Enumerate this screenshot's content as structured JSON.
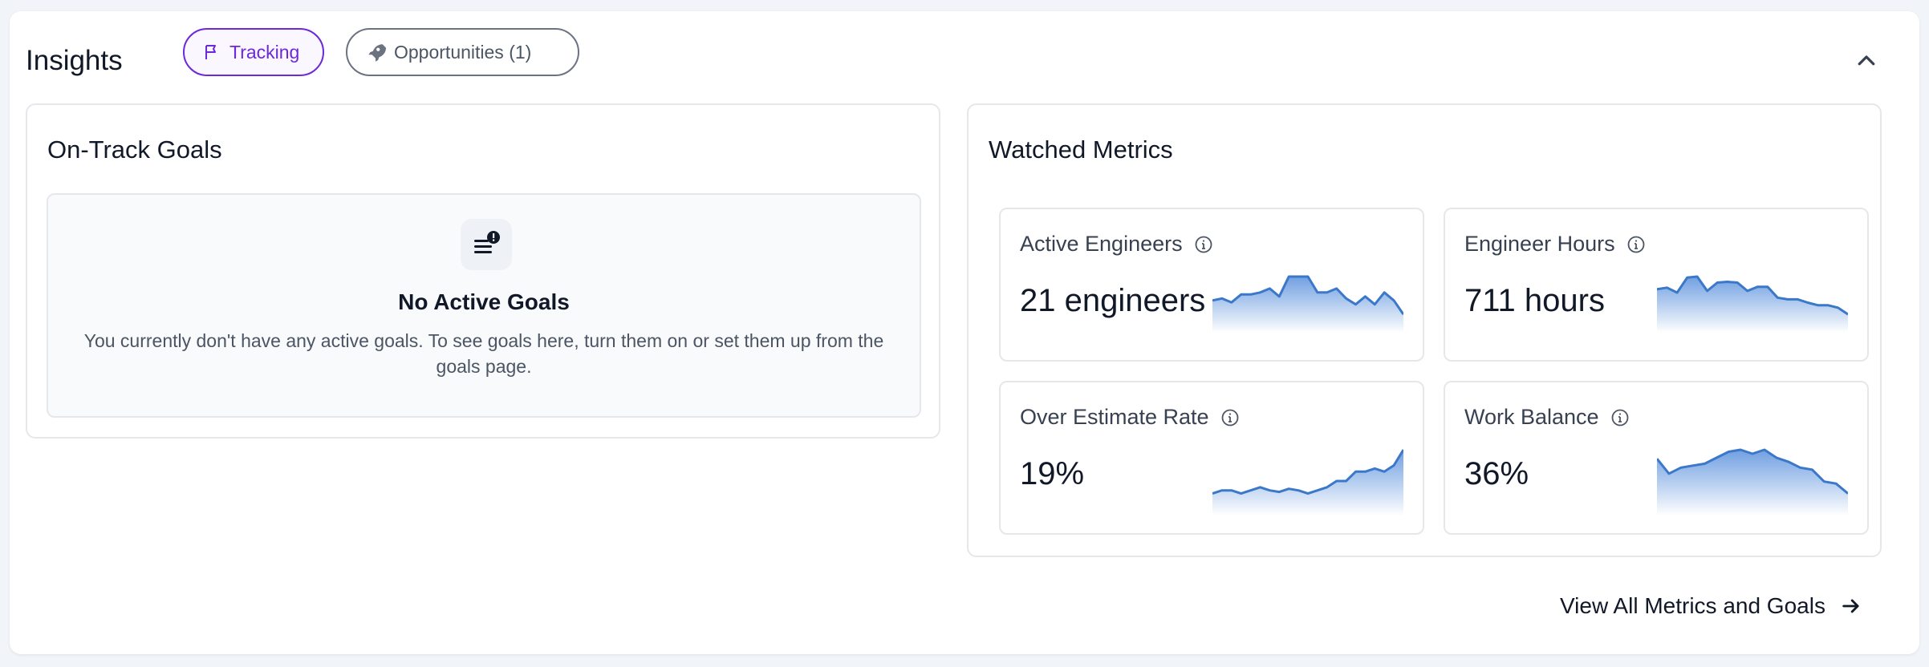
{
  "header": {
    "title": "Insights",
    "tabs": [
      {
        "label": "Tracking",
        "icon": "flag-icon",
        "active": true
      },
      {
        "label": "Opportunities (1)",
        "icon": "rocket-icon",
        "active": false
      }
    ],
    "collapse_icon": "chevron-up-icon"
  },
  "goals": {
    "title": "On-Track Goals",
    "empty_title": "No Active Goals",
    "empty_text": "You currently don't have any active goals. To see goals here, turn them on or set them up from the goals page."
  },
  "metrics": {
    "title": "Watched Metrics",
    "items": [
      {
        "label": "Active Engineers",
        "value": "21 engineers",
        "trend": [
          20.2,
          20.3,
          20.1,
          20.5,
          20.5,
          20.6,
          20.8,
          20.4,
          21.4,
          21.4,
          21.4,
          20.6,
          20.6,
          20.8,
          20.3,
          20,
          20.4,
          20,
          20.6,
          20.2,
          19.5
        ]
      },
      {
        "label": "Engineer Hours",
        "value": "711 hours",
        "trend": [
          705,
          706,
          703,
          712,
          712.6,
          704,
          709,
          709.5,
          709,
          704,
          706.5,
          706.5,
          700,
          699,
          699,
          697,
          695.5,
          695.5,
          694,
          690
        ]
      },
      {
        "label": "Over Estimate Rate",
        "value": "19%",
        "trend": [
          10,
          11,
          11,
          10,
          11,
          12,
          11,
          10.5,
          11.5,
          11,
          10,
          11,
          12,
          14,
          14,
          17,
          17,
          18,
          17,
          19,
          24
        ]
      },
      {
        "label": "Work Balance",
        "value": "36%",
        "trend": [
          36.5,
          35,
          35.6,
          35.8,
          36,
          36.6,
          37.2,
          37.4,
          37,
          37.4,
          36.6,
          36.2,
          35.6,
          35.4,
          34.2,
          34,
          33
        ]
      }
    ]
  },
  "footer": {
    "view_all": "View All Metrics and Goals"
  },
  "colors": {
    "accent": "#6d28d9",
    "spark_line": "#3b78c9",
    "spark_fill_top": "#6a9be0"
  }
}
